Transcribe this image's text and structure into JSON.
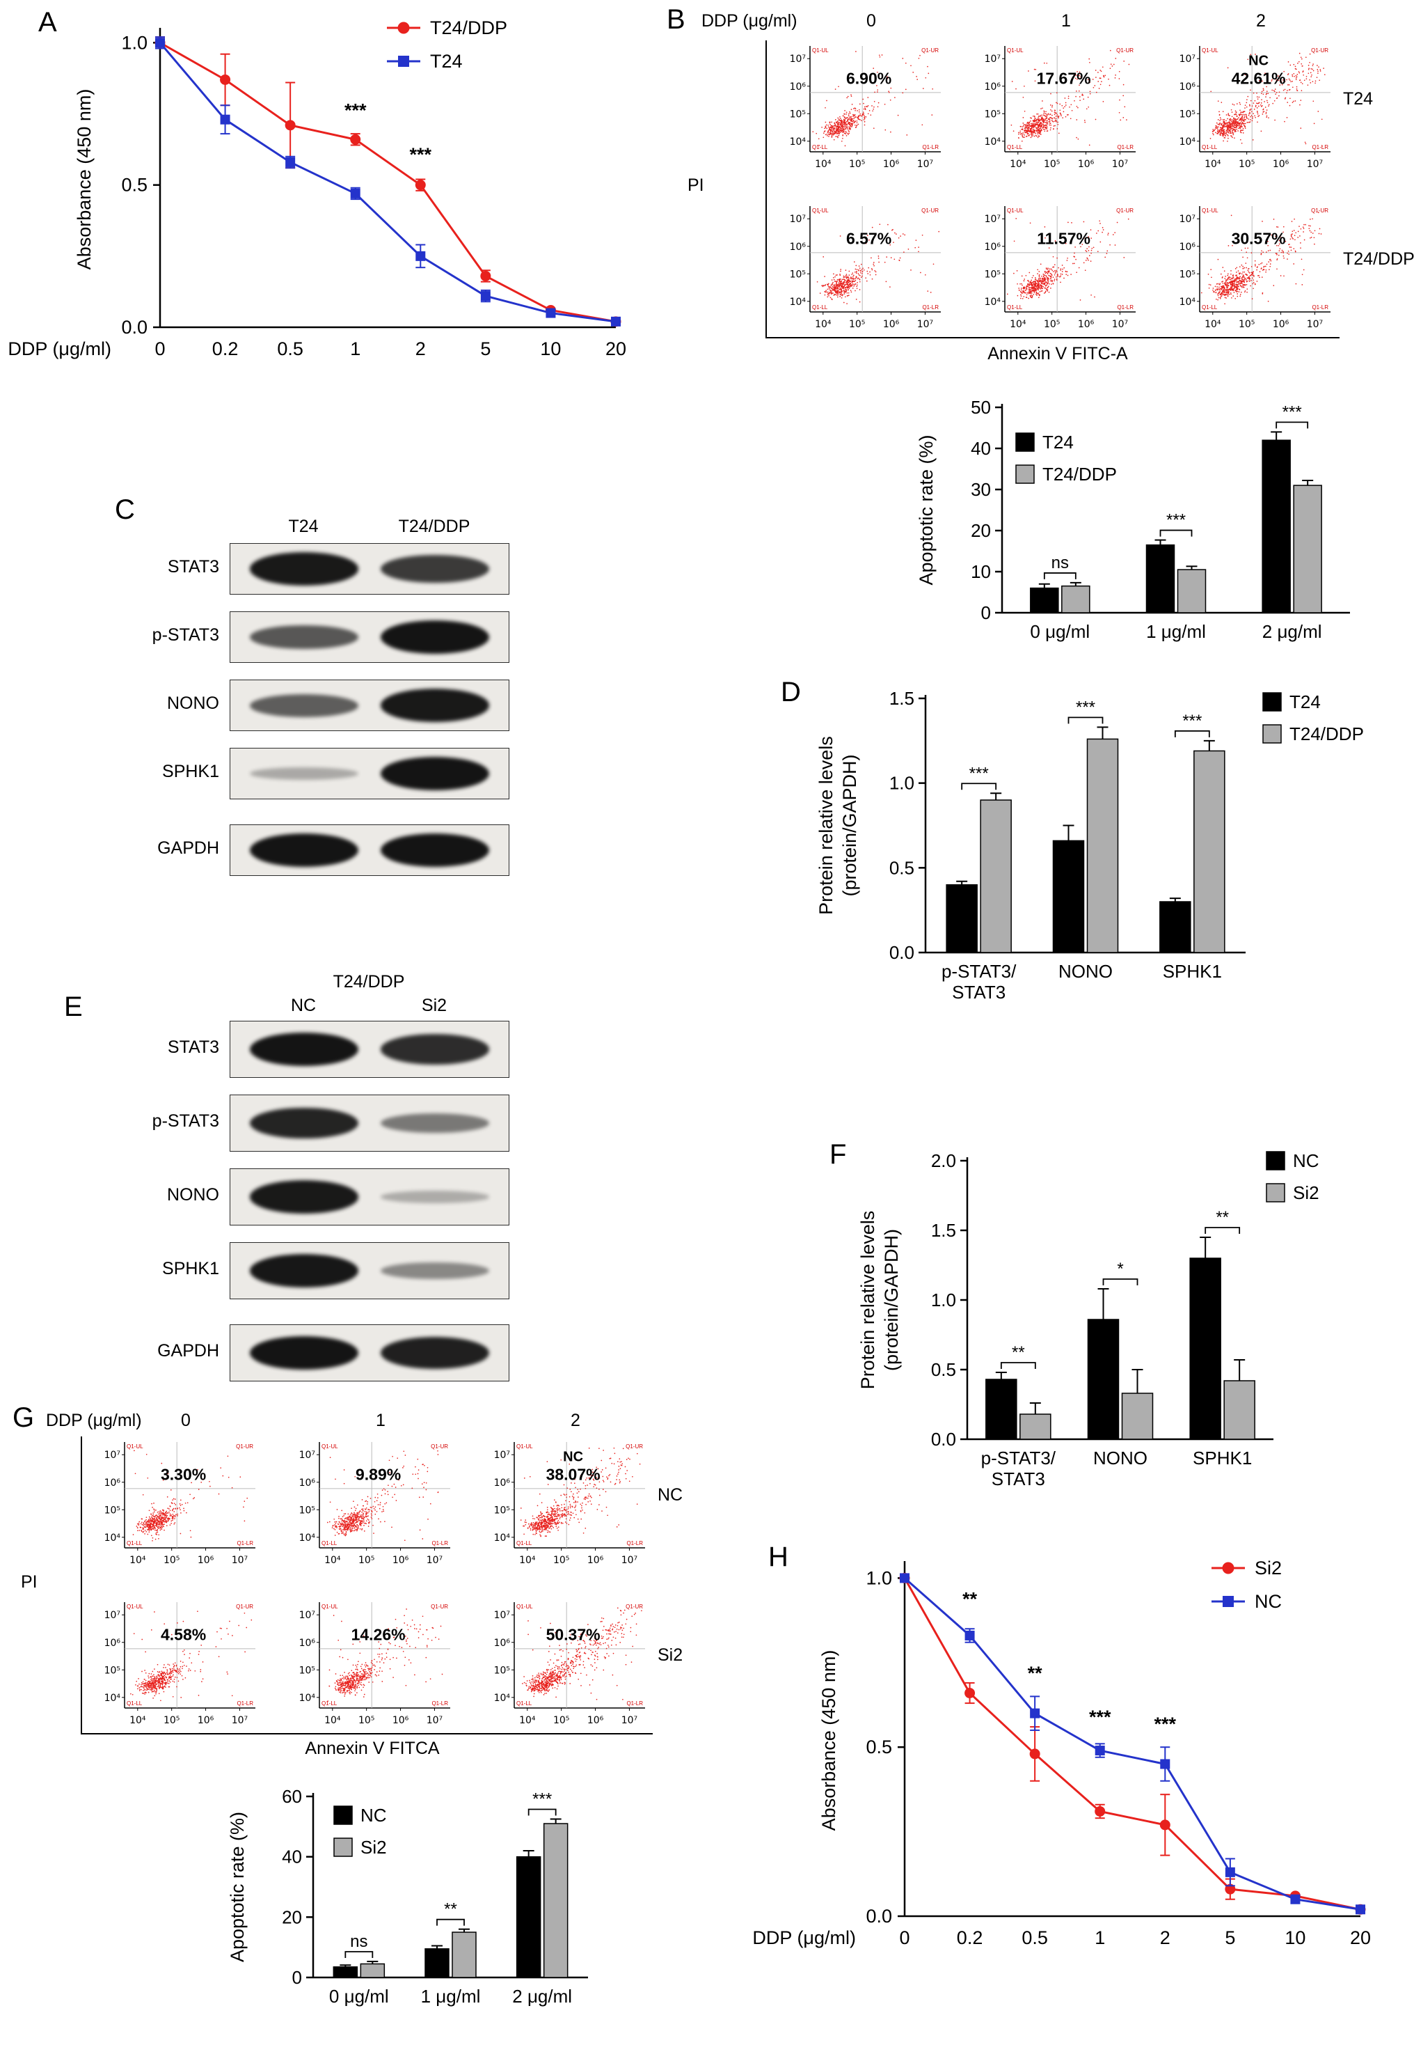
{
  "panel_labels": {
    "A": "A",
    "B": "B",
    "C": "C",
    "D": "D",
    "E": "E",
    "F": "F",
    "G": "G",
    "H": "H"
  },
  "flow_style": {
    "tick_labels": [
      "10⁴",
      "10⁵",
      "10⁶",
      "10⁷"
    ],
    "quadrant_labels": [
      "Q1-UL",
      "Q1-UR",
      "Q1-LL",
      "Q1-LR"
    ],
    "dot_color": "#e8211d"
  },
  "chart_data": [
    {
      "id": "A_cck8",
      "type": "line",
      "ylabel": "Absorbance (450 nm)",
      "xlabel": "DDP (μg/ml)",
      "ylim": [
        0,
        1.04
      ],
      "yticks": [
        0,
        0.5,
        1.0
      ],
      "ytick_labels": [
        "0.0",
        "0.5",
        "1.0"
      ],
      "categories": [
        "0",
        "0.2",
        "0.5",
        "1",
        "2",
        "5",
        "10",
        "20"
      ],
      "series": [
        {
          "name": "T24/DDP",
          "color": "#e8211d",
          "marker": "circle",
          "values": [
            1.0,
            0.87,
            0.71,
            0.66,
            0.5,
            0.18,
            0.06,
            0.02
          ],
          "errors": [
            0.02,
            0.09,
            0.15,
            0.02,
            0.02,
            0.02,
            0.01,
            0.01
          ]
        },
        {
          "name": "T24",
          "color": "#2433cb",
          "marker": "square",
          "values": [
            1.0,
            0.73,
            0.58,
            0.47,
            0.25,
            0.11,
            0.05,
            0.02
          ],
          "errors": [
            0.02,
            0.05,
            0.02,
            0.02,
            0.04,
            0.02,
            0.01,
            0.01
          ]
        }
      ],
      "annotations": [
        {
          "x_index": 3,
          "y": 0.74,
          "text": "***"
        },
        {
          "x_index": 4,
          "y": 0.585,
          "text": "***"
        }
      ]
    },
    {
      "id": "B_flow",
      "type": "scatter",
      "dose_label": "DDP (μg/ml)",
      "doses": [
        "0",
        "1",
        "2"
      ],
      "row_labels": [
        "T24",
        "T24/DDP"
      ],
      "pi_label": "PI",
      "x_axis_label": "Annexin V FITC-A",
      "plots": [
        [
          {
            "percent": "6.90%"
          },
          {
            "percent": "17.67%"
          },
          {
            "percent": "42.61%",
            "inner_label": "NC"
          }
        ],
        [
          {
            "percent": "6.57%"
          },
          {
            "percent": "11.57%"
          },
          {
            "percent": "30.57%"
          }
        ]
      ]
    },
    {
      "id": "B_apoptosis",
      "type": "bar",
      "ylabel": "Apoptotic rate (%)",
      "ylim": [
        0,
        50
      ],
      "yticks": [
        0,
        10,
        20,
        30,
        40,
        50
      ],
      "ytick_labels": [
        "0",
        "10",
        "20",
        "30",
        "40",
        "50"
      ],
      "categories": [
        "0 μg/ml",
        "1 μg/ml",
        "2 μg/ml"
      ],
      "series": [
        {
          "name": "T24",
          "color": "#000000",
          "values": [
            6.0,
            16.5,
            42.0
          ],
          "errors": [
            1.0,
            1.2,
            2.0
          ]
        },
        {
          "name": "T24/DDP",
          "color": "#aeaeae",
          "values": [
            6.5,
            10.5,
            31.0
          ],
          "errors": [
            0.8,
            0.8,
            1.2
          ]
        }
      ],
      "sig": [
        "ns",
        "***",
        "***"
      ]
    },
    {
      "id": "D_protein_levels",
      "type": "bar",
      "ylabel": "Protein relative levels\n(protein/GAPDH)",
      "ylim": [
        0,
        1.5
      ],
      "yticks": [
        0,
        0.5,
        1.0,
        1.5
      ],
      "ytick_labels": [
        "0.0",
        "0.5",
        "1.0",
        "1.5"
      ],
      "categories": [
        "p-STAT3/\nSTAT3",
        "NONO",
        "SPHK1"
      ],
      "series": [
        {
          "name": "T24",
          "color": "#000000",
          "values": [
            0.4,
            0.66,
            0.3
          ],
          "errors": [
            0.02,
            0.09,
            0.02
          ]
        },
        {
          "name": "T24/DDP",
          "color": "#aeaeae",
          "values": [
            0.9,
            1.26,
            1.19
          ],
          "errors": [
            0.04,
            0.07,
            0.06
          ]
        }
      ],
      "sig": [
        "***",
        "***",
        "***"
      ]
    },
    {
      "id": "F_protein_levels",
      "type": "bar",
      "ylabel": "Protein relative levels\n(protein/GAPDH)",
      "ylim": [
        0,
        2.0
      ],
      "yticks": [
        0,
        0.5,
        1.0,
        1.5,
        2.0
      ],
      "ytick_labels": [
        "0.0",
        "0.5",
        "1.0",
        "1.5",
        "2.0"
      ],
      "categories": [
        "p-STAT3/\nSTAT3",
        "NONO",
        "SPHK1"
      ],
      "series": [
        {
          "name": "NC",
          "color": "#000000",
          "values": [
            0.43,
            0.86,
            1.3
          ],
          "errors": [
            0.05,
            0.22,
            0.15
          ]
        },
        {
          "name": "Si2",
          "color": "#aeaeae",
          "values": [
            0.18,
            0.33,
            0.42
          ],
          "errors": [
            0.08,
            0.17,
            0.15
          ]
        }
      ],
      "sig": [
        "**",
        "*",
        "**"
      ]
    },
    {
      "id": "G_flow",
      "type": "scatter",
      "dose_label": "DDP (μg/ml)",
      "doses": [
        "0",
        "1",
        "2"
      ],
      "row_labels": [
        "NC",
        "Si2"
      ],
      "pi_label": "PI",
      "x_axis_label": "Annexin V FITCA",
      "plots": [
        [
          {
            "percent": "3.30%"
          },
          {
            "percent": "9.89%"
          },
          {
            "percent": "38.07%",
            "inner_label": "NC"
          }
        ],
        [
          {
            "percent": "4.58%"
          },
          {
            "percent": "14.26%"
          },
          {
            "percent": "50.37%"
          }
        ]
      ]
    },
    {
      "id": "G_apoptosis",
      "type": "bar",
      "ylabel": "Apoptotic rate (%)",
      "ylim": [
        0,
        60
      ],
      "yticks": [
        0,
        20,
        40,
        60
      ],
      "ytick_labels": [
        "0",
        "20",
        "40",
        "60"
      ],
      "categories": [
        "0 μg/ml",
        "1 μg/ml",
        "2 μg/ml"
      ],
      "series": [
        {
          "name": "NC",
          "color": "#000000",
          "values": [
            3.5,
            9.5,
            40.0
          ],
          "errors": [
            0.6,
            1.0,
            2.0
          ]
        },
        {
          "name": "Si2",
          "color": "#aeaeae",
          "values": [
            4.5,
            15.0,
            51.0
          ],
          "errors": [
            0.8,
            1.0,
            1.5
          ]
        }
      ],
      "sig": [
        "ns",
        "**",
        "***"
      ]
    },
    {
      "id": "H_cck8",
      "type": "line",
      "ylabel": "Absorbance (450 nm)",
      "xlabel": "DDP (μg/ml)",
      "ylim": [
        0,
        1.04
      ],
      "yticks": [
        0,
        0.5,
        1.0
      ],
      "ytick_labels": [
        "0.0",
        "0.5",
        "1.0"
      ],
      "categories": [
        "0",
        "0.2",
        "0.5",
        "1",
        "2",
        "5",
        "10",
        "20"
      ],
      "series": [
        {
          "name": "Si2",
          "color": "#e8211d",
          "marker": "circle",
          "values": [
            1.0,
            0.66,
            0.48,
            0.31,
            0.27,
            0.08,
            0.06,
            0.02
          ],
          "errors": [
            0.01,
            0.03,
            0.08,
            0.02,
            0.09,
            0.03,
            0.01,
            0.01
          ]
        },
        {
          "name": "NC",
          "color": "#2433cb",
          "marker": "square",
          "values": [
            1.0,
            0.83,
            0.6,
            0.49,
            0.45,
            0.13,
            0.05,
            0.02
          ],
          "errors": [
            0.01,
            0.02,
            0.05,
            0.02,
            0.05,
            0.04,
            0.01,
            0.01
          ]
        }
      ],
      "annotations": [
        {
          "x_index": 1,
          "y": 0.92,
          "text": "**"
        },
        {
          "x_index": 2,
          "y": 0.7,
          "text": "**"
        },
        {
          "x_index": 3,
          "y": 0.57,
          "text": "***"
        },
        {
          "x_index": 4,
          "y": 0.55,
          "text": "***"
        }
      ]
    }
  ],
  "blots": {
    "C": {
      "col_headers": [
        "T24",
        "T24/DDP"
      ],
      "rows": [
        {
          "name": "STAT3",
          "bands": [
            0.92,
            0.72
          ]
        },
        {
          "name": "p-STAT3",
          "bands": [
            0.55,
            0.95
          ]
        },
        {
          "name": "NONO",
          "bands": [
            0.5,
            0.92
          ]
        },
        {
          "name": "SPHK1",
          "bands": [
            0.06,
            0.95
          ]
        },
        {
          "name": "GAPDH",
          "bands": [
            0.95,
            0.95
          ]
        }
      ]
    },
    "E": {
      "title": "T24/DDP",
      "col_headers": [
        "NC",
        "Si2"
      ],
      "rows": [
        {
          "name": "STAT3",
          "bands": [
            0.95,
            0.8
          ]
        },
        {
          "name": "p-STAT3",
          "bands": [
            0.85,
            0.35
          ]
        },
        {
          "name": "NONO",
          "bands": [
            0.92,
            0.04
          ]
        },
        {
          "name": "SPHK1",
          "bands": [
            0.93,
            0.25
          ]
        },
        {
          "name": "GAPDH",
          "bands": [
            0.95,
            0.88
          ]
        }
      ]
    }
  }
}
